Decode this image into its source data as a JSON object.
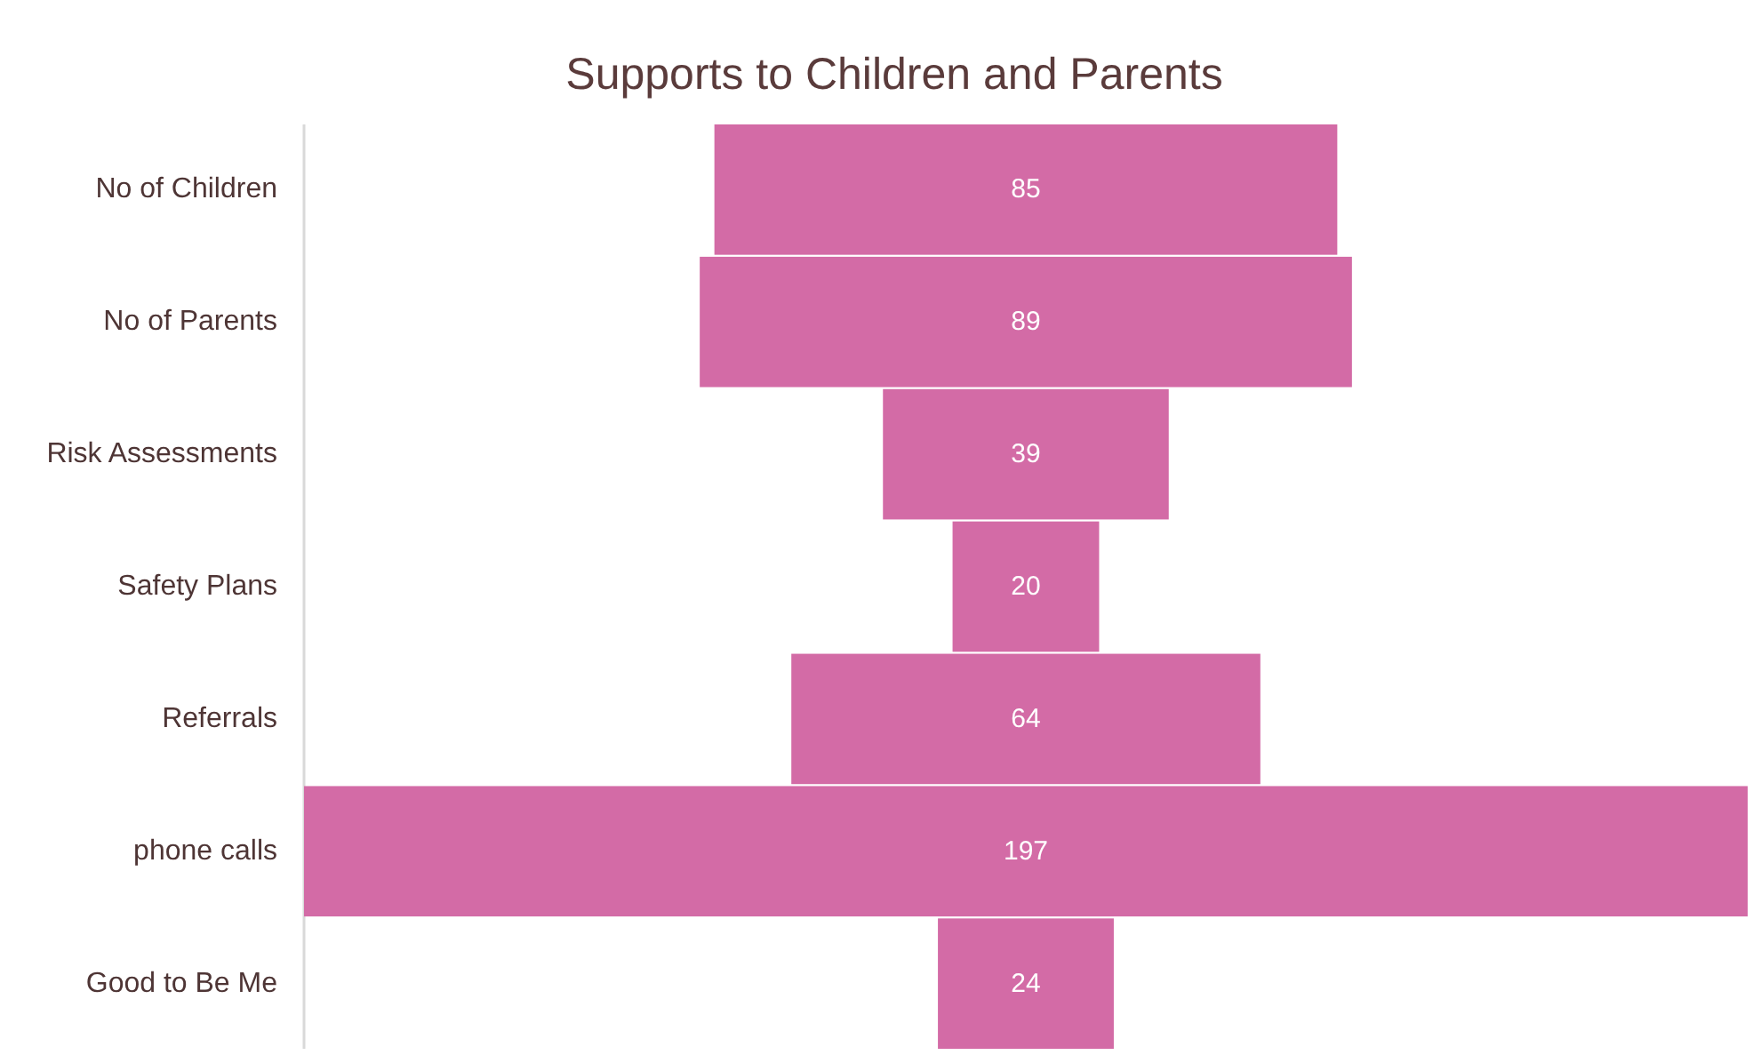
{
  "chart_data": {
    "type": "other",
    "title": "Supports to Children and Parents",
    "categories": [
      "No of Children",
      "No of Parents",
      "Risk Assessments",
      "Safety Plans",
      "Referrals",
      "phone calls",
      "Good to Be Me"
    ],
    "values": [
      85,
      89,
      39,
      20,
      64,
      197,
      24
    ],
    "color": "#d36ba6",
    "data_labels": true
  }
}
